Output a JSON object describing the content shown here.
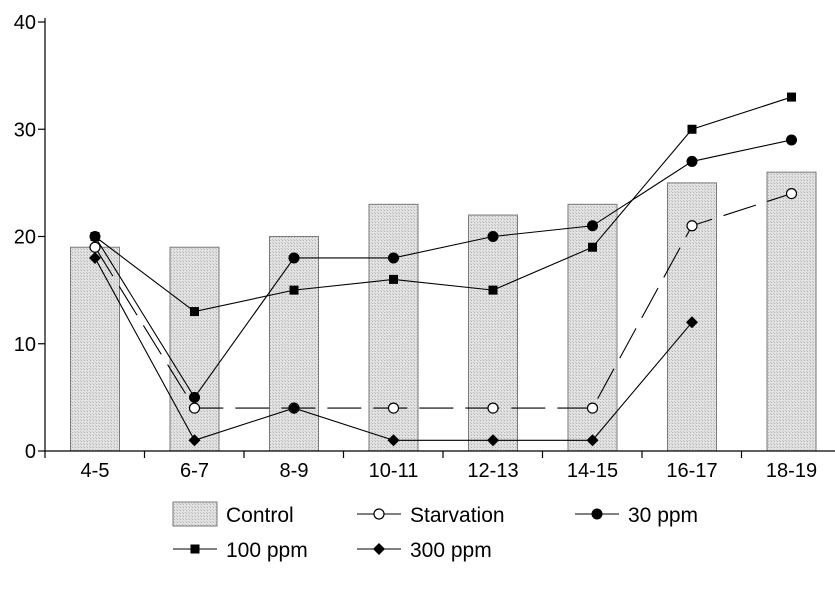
{
  "chart_data": {
    "type": "bar",
    "categories": [
      "4-5",
      "6-7",
      "8-9",
      "10-11",
      "12-13",
      "14-15",
      "16-17",
      "18-19"
    ],
    "ylim": [
      0,
      40
    ],
    "yticks": [
      0,
      10,
      20,
      30,
      40
    ],
    "grid": false,
    "legend_position": "bottom",
    "series": [
      {
        "name": "Control",
        "kind": "bar",
        "values": [
          19,
          19,
          20,
          23,
          22,
          23,
          25,
          26
        ]
      },
      {
        "name": "Starvation",
        "kind": "line",
        "marker": "open-circle",
        "dash": "dashed",
        "values": [
          19,
          4,
          4,
          4,
          4,
          4,
          21,
          24
        ]
      },
      {
        "name": "30 ppm",
        "kind": "line",
        "marker": "filled-circle",
        "dash": "solid",
        "values": [
          20,
          5,
          18,
          18,
          20,
          21,
          27,
          29
        ]
      },
      {
        "name": "100 ppm",
        "kind": "line",
        "marker": "filled-square",
        "dash": "solid",
        "values": [
          20,
          13,
          15,
          16,
          15,
          19,
          30,
          33
        ]
      },
      {
        "name": "300 ppm",
        "kind": "line",
        "marker": "filled-diamond",
        "dash": "solid",
        "values": [
          18,
          1,
          4,
          1,
          1,
          1,
          12,
          null
        ]
      }
    ]
  }
}
